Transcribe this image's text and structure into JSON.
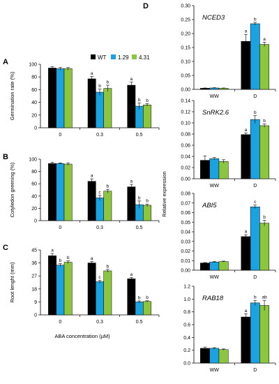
{
  "figure": {
    "legend": [
      {
        "label": "WT",
        "color": "#000000"
      },
      {
        "label": "1.29",
        "color": "#1aa3e0"
      },
      {
        "label": "4.31",
        "color": "#8cc63f"
      }
    ],
    "left_xlabel": "ABA concentration (µM)",
    "right_ylabel": "Relative expression"
  },
  "chart_data": [
    {
      "panel": "A",
      "type": "bar",
      "ylabel": "Germination rate (%)",
      "ylim": [
        0,
        100
      ],
      "ticks": [
        0,
        20,
        40,
        60,
        80,
        100
      ],
      "categories": [
        "0",
        "0.3",
        "0.5"
      ],
      "series": [
        {
          "name": "WT",
          "values": [
            94,
            77,
            67
          ],
          "errors": [
            2,
            4,
            5
          ]
        },
        {
          "name": "1.29",
          "values": [
            93,
            56,
            34
          ],
          "errors": [
            2,
            5,
            5
          ]
        },
        {
          "name": "4.31",
          "values": [
            93,
            62,
            36
          ],
          "errors": [
            2,
            5,
            2
          ]
        }
      ],
      "letters": [
        [
          "",
          "",
          ""
        ],
        [
          "a",
          "b",
          "b"
        ],
        [
          "a",
          "b",
          "b"
        ]
      ]
    },
    {
      "panel": "B",
      "type": "bar",
      "ylabel": "Cotyledon greening (%)",
      "ylim": [
        0,
        100
      ],
      "ticks": [
        0,
        20,
        40,
        60,
        80,
        100
      ],
      "categories": [
        "0",
        "0.3",
        "0.5"
      ],
      "series": [
        {
          "name": "WT",
          "values": [
            93,
            64,
            55
          ],
          "errors": [
            2,
            4,
            4
          ]
        },
        {
          "name": "1.29",
          "values": [
            93,
            37,
            26
          ],
          "errors": [
            1,
            4,
            6
          ]
        },
        {
          "name": "4.31",
          "values": [
            92,
            48,
            25
          ],
          "errors": [
            2,
            3,
            2
          ]
        }
      ],
      "letters": [
        [
          "",
          "",
          ""
        ],
        [
          "a",
          "c",
          "b"
        ],
        [
          "a",
          "b",
          "b"
        ]
      ]
    },
    {
      "panel": "C",
      "type": "bar",
      "ylabel": "Root lenght (mm)",
      "ylim": [
        0,
        45
      ],
      "ticks": [
        0,
        9,
        18,
        27,
        36,
        45
      ],
      "categories": [
        "0",
        "0.3",
        "0.5"
      ],
      "series": [
        {
          "name": "WT",
          "values": [
            41,
            36,
            25
          ],
          "errors": [
            1.5,
            1,
            1
          ]
        },
        {
          "name": "1.29",
          "values": [
            34.5,
            23,
            9
          ],
          "errors": [
            1,
            1,
            0.7
          ]
        },
        {
          "name": "4.31",
          "values": [
            36.5,
            30.5,
            9.3
          ],
          "errors": [
            1,
            1,
            0.5
          ]
        }
      ],
      "letters": [
        [
          "a",
          "b",
          "b"
        ],
        [
          "a",
          "c",
          "b"
        ],
        [
          "a",
          "b",
          "b"
        ]
      ]
    },
    {
      "panel": "D",
      "type": "bar",
      "title": "NCED3",
      "ylim": [
        0,
        0.3
      ],
      "ticks": [
        0,
        0.05,
        0.1,
        0.15,
        0.2,
        0.25,
        0.3
      ],
      "tick_labels": [
        "0.00",
        "0.05",
        "0.10",
        "0.15",
        "0.20",
        "0.25",
        "0.30"
      ],
      "categories": [
        "WW",
        "D"
      ],
      "series": [
        {
          "name": "WT",
          "values": [
            0.004,
            0.172
          ],
          "errors": [
            0.001,
            0.025
          ]
        },
        {
          "name": "1.29",
          "values": [
            0.005,
            0.235
          ],
          "errors": [
            0.001,
            0.005
          ]
        },
        {
          "name": "4.31",
          "values": [
            0.004,
            0.161
          ],
          "errors": [
            0.001,
            0.008
          ]
        }
      ],
      "letters": [
        [
          "",
          "",
          ""
        ],
        [
          "a",
          "b",
          "a"
        ]
      ]
    },
    {
      "panel": "D",
      "type": "bar",
      "title": "SnRK2.6",
      "ylim": [
        0,
        0.14
      ],
      "ticks": [
        0,
        0.02,
        0.04,
        0.06,
        0.08,
        0.1,
        0.12,
        0.14
      ],
      "tick_labels": [
        "0.00",
        "0.02",
        "0.04",
        "0.06",
        "0.08",
        "0.10",
        "0.12",
        "0.14"
      ],
      "categories": [
        "WW",
        "D"
      ],
      "series": [
        {
          "name": "WT",
          "values": [
            0.033,
            0.079
          ],
          "errors": [
            0.008,
            0.003
          ]
        },
        {
          "name": "1.29",
          "values": [
            0.036,
            0.106
          ],
          "errors": [
            0.002,
            0.007
          ]
        },
        {
          "name": "4.31",
          "values": [
            0.031,
            0.095
          ],
          "errors": [
            0.003,
            0.003
          ]
        }
      ],
      "letters": [
        [
          "",
          "",
          ""
        ],
        [
          "a",
          "b",
          "b"
        ]
      ]
    },
    {
      "panel": "D",
      "type": "bar",
      "title": "ABI5",
      "ylim": [
        0,
        0.08
      ],
      "ticks": [
        0,
        0.01,
        0.02,
        0.03,
        0.04,
        0.05,
        0.06,
        0.07,
        0.08
      ],
      "tick_labels": [
        "0.00",
        "0.01",
        "0.02",
        "0.03",
        "0.04",
        "0.05",
        "0.06",
        "0.07",
        "0.08"
      ],
      "categories": [
        "WW",
        "D"
      ],
      "series": [
        {
          "name": "WT",
          "values": [
            0.0075,
            0.035
          ],
          "errors": [
            0.0005,
            0.002
          ]
        },
        {
          "name": "1.29",
          "values": [
            0.0085,
            0.066
          ],
          "errors": [
            0.0005,
            0.002
          ]
        },
        {
          "name": "4.31",
          "values": [
            0.009,
            0.049
          ],
          "errors": [
            0.0005,
            0.003
          ]
        }
      ],
      "letters": [
        [
          "",
          "",
          ""
        ],
        [
          "a",
          "c",
          "b"
        ]
      ]
    },
    {
      "panel": "D",
      "type": "bar",
      "title": "RAB18",
      "ylim": [
        0,
        1.2
      ],
      "ticks": [
        0,
        0.2,
        0.4,
        0.6,
        0.8,
        1.0,
        1.2
      ],
      "tick_labels": [
        "0.0",
        "0.2",
        "0.4",
        "0.6",
        "0.8",
        "1.0",
        "1.2"
      ],
      "categories": [
        "WW",
        "D"
      ],
      "series": [
        {
          "name": "WT",
          "values": [
            0.23,
            0.72
          ],
          "errors": [
            0.02,
            0.05
          ]
        },
        {
          "name": "1.29",
          "values": [
            0.23,
            0.94
          ],
          "errors": [
            0.01,
            0.04
          ]
        },
        {
          "name": "4.31",
          "values": [
            0.21,
            0.9
          ],
          "errors": [
            0.01,
            0.08
          ]
        }
      ],
      "letters": [
        [
          "",
          "",
          ""
        ],
        [
          "a",
          "b",
          "ab"
        ]
      ]
    }
  ]
}
